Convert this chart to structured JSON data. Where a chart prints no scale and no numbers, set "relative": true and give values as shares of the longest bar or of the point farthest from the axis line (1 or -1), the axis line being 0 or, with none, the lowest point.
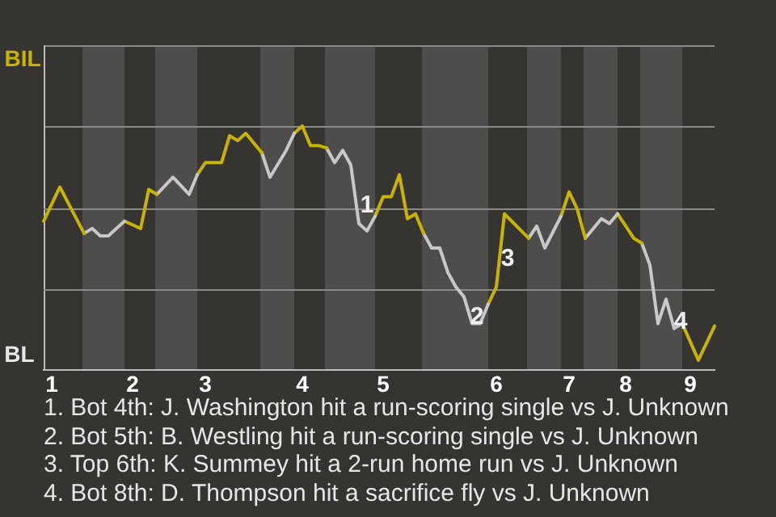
{
  "chart_data": {
    "type": "line",
    "relative": true,
    "legend": false,
    "marker": "none",
    "line_style": "solid",
    "categories": [
      null,
      "1",
      null,
      null,
      null,
      null,
      null,
      null,
      null,
      null,
      null,
      "2",
      null,
      null,
      null,
      null,
      null,
      null,
      null,
      null,
      "3",
      null,
      null,
      null,
      null,
      null,
      null,
      null,
      null,
      null,
      null,
      null,
      "4",
      null,
      null,
      null,
      null,
      null,
      null,
      null,
      null,
      null,
      "5",
      null,
      null,
      null,
      null,
      null,
      null,
      null,
      null,
      null,
      null,
      null,
      null,
      null,
      "6",
      null,
      null,
      null,
      null,
      null,
      null,
      null,
      null,
      "7",
      null,
      null,
      null,
      null,
      null,
      null,
      "8",
      null,
      null,
      null,
      null,
      null,
      null,
      null,
      "9",
      null,
      null,
      null
    ],
    "series": [
      {
        "color": "#c8b400",
        "values": [
          0.61,
          null,
          0.75,
          null,
          null,
          0.56,
          null,
          null,
          null,
          null,
          null,
          null,
          null,
          null,
          null,
          null,
          null,
          null,
          null,
          null,
          null,
          null,
          null,
          null,
          null,
          null,
          null,
          null,
          null,
          null,
          null,
          null,
          null,
          null,
          null,
          null,
          null,
          null,
          null,
          null,
          null,
          null,
          null,
          null,
          null,
          null,
          null,
          null,
          null,
          null,
          null,
          null,
          null,
          null,
          null,
          null,
          null,
          null,
          null,
          null,
          null,
          null,
          null,
          null,
          null,
          null,
          null,
          null,
          null,
          null,
          null,
          null,
          null,
          null,
          null,
          null,
          null,
          null,
          null,
          null,
          null,
          null,
          null,
          null
        ]
      },
      {
        "color": "#c8c8c8",
        "values": [
          null,
          null,
          null,
          null,
          null,
          0.56,
          0.58,
          0.55,
          0.55,
          null,
          0.61,
          null,
          null,
          null,
          null,
          null,
          null,
          null,
          null,
          null,
          null,
          null,
          null,
          null,
          null,
          null,
          null,
          null,
          null,
          null,
          null,
          null,
          null,
          null,
          null,
          null,
          null,
          null,
          null,
          null,
          null,
          null,
          null,
          null,
          null,
          null,
          null,
          null,
          null,
          null,
          null,
          null,
          null,
          null,
          null,
          null,
          null,
          null,
          null,
          null,
          null,
          null,
          null,
          null,
          null,
          null,
          null,
          null,
          null,
          null,
          null,
          null,
          null,
          null,
          null,
          null,
          null,
          null,
          null,
          null,
          null,
          null,
          null,
          null
        ]
      },
      {
        "color": "#c8b400",
        "values": [
          null,
          null,
          null,
          null,
          null,
          null,
          null,
          null,
          null,
          null,
          0.61,
          null,
          0.58,
          0.74,
          0.72,
          null,
          null,
          null,
          null,
          null,
          null,
          null,
          null,
          null,
          null,
          null,
          null,
          null,
          null,
          null,
          null,
          null,
          null,
          null,
          null,
          null,
          null,
          null,
          null,
          null,
          null,
          null,
          null,
          null,
          null,
          null,
          null,
          null,
          null,
          null,
          null,
          null,
          null,
          null,
          null,
          null,
          null,
          null,
          null,
          null,
          null,
          null,
          null,
          null,
          null,
          null,
          null,
          null,
          null,
          null,
          null,
          null,
          null,
          null,
          null,
          null,
          null,
          null,
          null,
          null,
          null,
          null,
          null,
          null
        ]
      },
      {
        "color": "#c8c8c8",
        "values": [
          null,
          null,
          null,
          null,
          null,
          null,
          null,
          null,
          null,
          null,
          null,
          null,
          null,
          null,
          0.72,
          null,
          0.79,
          null,
          0.72,
          0.8,
          null,
          null,
          null,
          null,
          null,
          null,
          null,
          null,
          null,
          null,
          null,
          null,
          null,
          null,
          null,
          null,
          null,
          null,
          null,
          null,
          null,
          null,
          null,
          null,
          null,
          null,
          null,
          null,
          null,
          null,
          null,
          null,
          null,
          null,
          null,
          null,
          null,
          null,
          null,
          null,
          null,
          null,
          null,
          null,
          null,
          null,
          null,
          null,
          null,
          null,
          null,
          null,
          null,
          null,
          null,
          null,
          null,
          null,
          null,
          null,
          null,
          null,
          null,
          null
        ]
      },
      {
        "color": "#c8b400",
        "values": [
          null,
          null,
          null,
          null,
          null,
          null,
          null,
          null,
          null,
          null,
          null,
          null,
          null,
          null,
          null,
          null,
          null,
          null,
          null,
          0.8,
          0.85,
          null,
          0.85,
          0.96,
          0.94,
          0.97,
          null,
          0.89,
          null,
          null,
          null,
          null,
          null,
          null,
          null,
          null,
          null,
          null,
          null,
          null,
          null,
          null,
          null,
          null,
          null,
          null,
          null,
          null,
          null,
          null,
          null,
          null,
          null,
          null,
          null,
          null,
          null,
          null,
          null,
          null,
          null,
          null,
          null,
          null,
          null,
          null,
          null,
          null,
          null,
          null,
          null,
          null,
          null,
          null,
          null,
          null,
          null,
          null,
          null,
          null,
          null,
          null,
          null,
          null
        ]
      },
      {
        "color": "#c8c8c8",
        "values": [
          null,
          null,
          null,
          null,
          null,
          null,
          null,
          null,
          null,
          null,
          null,
          null,
          null,
          null,
          null,
          null,
          null,
          null,
          null,
          null,
          null,
          null,
          null,
          null,
          null,
          null,
          null,
          0.89,
          0.79,
          null,
          0.9,
          0.97,
          null,
          null,
          null,
          null,
          null,
          null,
          null,
          null,
          null,
          null,
          null,
          null,
          null,
          null,
          null,
          null,
          null,
          null,
          null,
          null,
          null,
          null,
          null,
          null,
          null,
          null,
          null,
          null,
          null,
          null,
          null,
          null,
          null,
          null,
          null,
          null,
          null,
          null,
          null,
          null,
          null,
          null,
          null,
          null,
          null,
          null,
          null,
          null,
          null,
          null,
          null,
          null
        ]
      },
      {
        "color": "#c8b400",
        "values": [
          null,
          null,
          null,
          null,
          null,
          null,
          null,
          null,
          null,
          null,
          null,
          null,
          null,
          null,
          null,
          null,
          null,
          null,
          null,
          null,
          null,
          null,
          null,
          null,
          null,
          null,
          null,
          null,
          null,
          null,
          null,
          0.97,
          1,
          0.92,
          0.92,
          0.91,
          null,
          null,
          null,
          null,
          null,
          null,
          null,
          null,
          null,
          null,
          null,
          null,
          null,
          null,
          null,
          null,
          null,
          null,
          null,
          null,
          null,
          null,
          null,
          null,
          null,
          null,
          null,
          null,
          null,
          null,
          null,
          null,
          null,
          null,
          null,
          null,
          null,
          null,
          null,
          null,
          null,
          null,
          null,
          null,
          null,
          null,
          null,
          null
        ]
      },
      {
        "color": "#c8c8c8",
        "values": [
          null,
          null,
          null,
          null,
          null,
          null,
          null,
          null,
          null,
          null,
          null,
          null,
          null,
          null,
          null,
          null,
          null,
          null,
          null,
          null,
          null,
          null,
          null,
          null,
          null,
          null,
          null,
          null,
          null,
          null,
          null,
          null,
          null,
          null,
          null,
          0.91,
          0.85,
          0.9,
          0.84,
          0.6,
          0.57,
          0.63,
          null,
          null,
          null,
          null,
          null,
          null,
          null,
          null,
          null,
          null,
          null,
          null,
          null,
          null,
          null,
          null,
          null,
          null,
          null,
          null,
          null,
          null,
          null,
          null,
          null,
          null,
          null,
          null,
          null,
          null,
          null,
          null,
          null,
          null,
          null,
          null,
          null,
          null,
          null,
          null,
          null,
          null
        ]
      },
      {
        "color": "#c8b400",
        "values": [
          null,
          null,
          null,
          null,
          null,
          null,
          null,
          null,
          null,
          null,
          null,
          null,
          null,
          null,
          null,
          null,
          null,
          null,
          null,
          null,
          null,
          null,
          null,
          null,
          null,
          null,
          null,
          null,
          null,
          null,
          null,
          null,
          null,
          null,
          null,
          null,
          null,
          null,
          null,
          null,
          null,
          0.63,
          0.71,
          0.71,
          0.8,
          0.62,
          0.64,
          0.56,
          null,
          null,
          null,
          null,
          null,
          null,
          null,
          null,
          null,
          null,
          null,
          null,
          null,
          null,
          null,
          null,
          null,
          null,
          null,
          null,
          null,
          null,
          null,
          null,
          null,
          null,
          null,
          null,
          null,
          null,
          null,
          null,
          null,
          null,
          null,
          null
        ]
      },
      {
        "color": "#c8c8c8",
        "values": [
          null,
          null,
          null,
          null,
          null,
          null,
          null,
          null,
          null,
          null,
          null,
          null,
          null,
          null,
          null,
          null,
          null,
          null,
          null,
          null,
          null,
          null,
          null,
          null,
          null,
          null,
          null,
          null,
          null,
          null,
          null,
          null,
          null,
          null,
          null,
          null,
          null,
          null,
          null,
          null,
          null,
          null,
          null,
          null,
          null,
          null,
          null,
          0.56,
          0.5,
          0.5,
          0.4,
          0.34,
          0.3,
          0.19,
          0.19,
          0.27,
          null,
          null,
          null,
          null,
          null,
          null,
          null,
          null,
          null,
          null,
          null,
          null,
          null,
          null,
          null,
          null,
          null,
          null,
          null,
          null,
          null,
          null,
          null,
          null,
          null,
          null,
          null,
          null
        ]
      },
      {
        "color": "#c8b400",
        "values": [
          null,
          null,
          null,
          null,
          null,
          null,
          null,
          null,
          null,
          null,
          null,
          null,
          null,
          null,
          null,
          null,
          null,
          null,
          null,
          null,
          null,
          null,
          null,
          null,
          null,
          null,
          null,
          null,
          null,
          null,
          null,
          null,
          null,
          null,
          null,
          null,
          null,
          null,
          null,
          null,
          null,
          null,
          null,
          null,
          null,
          null,
          null,
          null,
          null,
          null,
          null,
          null,
          null,
          null,
          null,
          0.27,
          0.34,
          0.64,
          null,
          null,
          0.54,
          null,
          null,
          null,
          null,
          null,
          null,
          null,
          null,
          null,
          null,
          null,
          null,
          null,
          null,
          null,
          null,
          null,
          null,
          null,
          null,
          null,
          null,
          null
        ]
      },
      {
        "color": "#c8c8c8",
        "values": [
          null,
          null,
          null,
          null,
          null,
          null,
          null,
          null,
          null,
          null,
          null,
          null,
          null,
          null,
          null,
          null,
          null,
          null,
          null,
          null,
          null,
          null,
          null,
          null,
          null,
          null,
          null,
          null,
          null,
          null,
          null,
          null,
          null,
          null,
          null,
          null,
          null,
          null,
          null,
          null,
          null,
          null,
          null,
          null,
          null,
          null,
          null,
          null,
          null,
          null,
          null,
          null,
          null,
          null,
          null,
          null,
          null,
          null,
          null,
          null,
          0.54,
          0.59,
          0.5,
          null,
          0.63,
          null,
          null,
          null,
          null,
          null,
          null,
          null,
          null,
          null,
          null,
          null,
          null,
          null,
          null,
          null,
          null,
          null,
          null,
          null
        ]
      },
      {
        "color": "#c8b400",
        "values": [
          null,
          null,
          null,
          null,
          null,
          null,
          null,
          null,
          null,
          null,
          null,
          null,
          null,
          null,
          null,
          null,
          null,
          null,
          null,
          null,
          null,
          null,
          null,
          null,
          null,
          null,
          null,
          null,
          null,
          null,
          null,
          null,
          null,
          null,
          null,
          null,
          null,
          null,
          null,
          null,
          null,
          null,
          null,
          null,
          null,
          null,
          null,
          null,
          null,
          null,
          null,
          null,
          null,
          null,
          null,
          null,
          null,
          null,
          null,
          null,
          null,
          null,
          null,
          null,
          0.63,
          0.73,
          0.66,
          0.54,
          null,
          null,
          null,
          null,
          null,
          null,
          null,
          null,
          null,
          null,
          null,
          null,
          null,
          null,
          null,
          null
        ]
      },
      {
        "color": "#c8c8c8",
        "values": [
          null,
          null,
          null,
          null,
          null,
          null,
          null,
          null,
          null,
          null,
          null,
          null,
          null,
          null,
          null,
          null,
          null,
          null,
          null,
          null,
          null,
          null,
          null,
          null,
          null,
          null,
          null,
          null,
          null,
          null,
          null,
          null,
          null,
          null,
          null,
          null,
          null,
          null,
          null,
          null,
          null,
          null,
          null,
          null,
          null,
          null,
          null,
          null,
          null,
          null,
          null,
          null,
          null,
          null,
          null,
          null,
          null,
          null,
          null,
          null,
          null,
          null,
          null,
          null,
          null,
          null,
          null,
          0.54,
          null,
          0.62,
          0.6,
          0.64,
          null,
          null,
          null,
          null,
          null,
          null,
          null,
          null,
          null,
          null,
          null,
          null
        ]
      },
      {
        "color": "#c8b400",
        "values": [
          null,
          null,
          null,
          null,
          null,
          null,
          null,
          null,
          null,
          null,
          null,
          null,
          null,
          null,
          null,
          null,
          null,
          null,
          null,
          null,
          null,
          null,
          null,
          null,
          null,
          null,
          null,
          null,
          null,
          null,
          null,
          null,
          null,
          null,
          null,
          null,
          null,
          null,
          null,
          null,
          null,
          null,
          null,
          null,
          null,
          null,
          null,
          null,
          null,
          null,
          null,
          null,
          null,
          null,
          null,
          null,
          null,
          null,
          null,
          null,
          null,
          null,
          null,
          null,
          null,
          null,
          null,
          null,
          null,
          null,
          null,
          0.64,
          null,
          0.54,
          0.52,
          null,
          null,
          null,
          null,
          null,
          null,
          null,
          null,
          null
        ]
      },
      {
        "color": "#c8c8c8",
        "values": [
          null,
          null,
          null,
          null,
          null,
          null,
          null,
          null,
          null,
          null,
          null,
          null,
          null,
          null,
          null,
          null,
          null,
          null,
          null,
          null,
          null,
          null,
          null,
          null,
          null,
          null,
          null,
          null,
          null,
          null,
          null,
          null,
          null,
          null,
          null,
          null,
          null,
          null,
          null,
          null,
          null,
          null,
          null,
          null,
          null,
          null,
          null,
          null,
          null,
          null,
          null,
          null,
          null,
          null,
          null,
          null,
          null,
          null,
          null,
          null,
          null,
          null,
          null,
          null,
          null,
          null,
          null,
          null,
          null,
          null,
          null,
          null,
          null,
          null,
          0.52,
          0.43,
          0.19,
          0.29,
          0.17,
          0.19,
          null,
          null,
          null,
          null
        ]
      },
      {
        "color": "#c8b400",
        "values": [
          null,
          null,
          null,
          null,
          null,
          null,
          null,
          null,
          null,
          null,
          null,
          null,
          null,
          null,
          null,
          null,
          null,
          null,
          null,
          null,
          null,
          null,
          null,
          null,
          null,
          null,
          null,
          null,
          null,
          null,
          null,
          null,
          null,
          null,
          null,
          null,
          null,
          null,
          null,
          null,
          null,
          null,
          null,
          null,
          null,
          null,
          null,
          null,
          null,
          null,
          null,
          null,
          null,
          null,
          null,
          null,
          null,
          null,
          null,
          null,
          null,
          null,
          null,
          null,
          null,
          null,
          null,
          null,
          null,
          null,
          null,
          null,
          null,
          null,
          null,
          null,
          null,
          null,
          null,
          0.19,
          null,
          0.04,
          null,
          0.18
        ]
      }
    ],
    "ref_lines": [
      {
        "axis": "y",
        "value": 0.33,
        "color": "#8c8b89"
      },
      {
        "axis": "y",
        "value": 0.66,
        "color": "#8c8b89"
      }
    ],
    "annotations": [
      "BIL",
      "BL",
      "1",
      "2",
      "3",
      "4",
      "1. Bot 4th: J. Washington hit a run-scoring single vs J. Unknown",
      "2. Bot 5th: B. Westling hit a run-scoring single vs J. Unknown",
      "3. Top 6th: K. Summey hit a 2-run home run vs J. Unknown",
      "4. Bot 8th: D. Thompson hit a sacrifice fly vs J. Unknown"
    ]
  }
}
